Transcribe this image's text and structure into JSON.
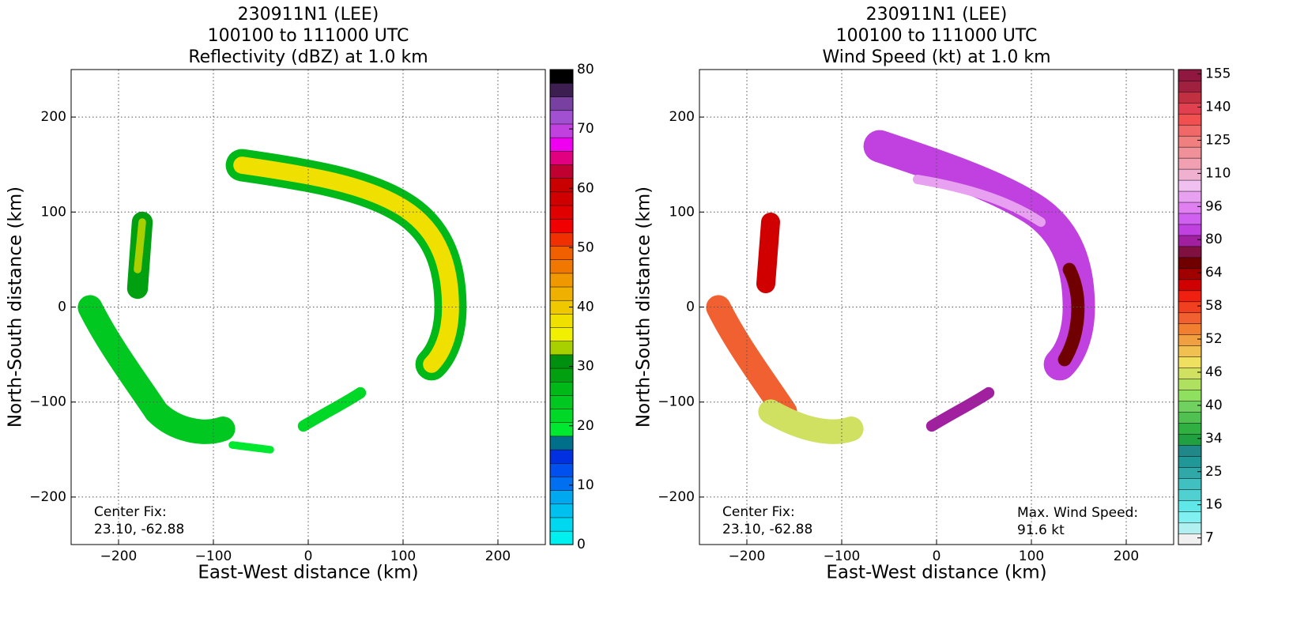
{
  "chart_data": [
    {
      "type": "radar-map",
      "title": [
        "230911N1 (LEE)",
        "100100 to 111000 UTC",
        "Reflectivity (dBZ) at 1.0 km"
      ],
      "xlabel": "East-West distance (km)",
      "ylabel": "North-South distance (km)",
      "xlim": [
        -250,
        250
      ],
      "ylim": [
        -250,
        250
      ],
      "xticks": [
        {
          "value": -200,
          "label": "−200"
        },
        {
          "value": -100,
          "label": "−100"
        },
        0,
        100,
        200
      ],
      "yticks": [
        {
          "value": -200,
          "label": "−200"
        },
        {
          "value": -100,
          "label": "−100"
        },
        0,
        100,
        200
      ],
      "grid": true,
      "colorbar": {
        "scale": "linear",
        "clim": [
          0,
          80
        ],
        "ticks": [
          0,
          10,
          20,
          30,
          40,
          50,
          60,
          70,
          80
        ],
        "colors": [
          "#00f0f0",
          "#00d8f0",
          "#00c0f0",
          "#00a8f0",
          "#0070f0",
          "#0050f0",
          "#0030e0",
          "#00708a",
          "#00e830",
          "#00d828",
          "#00c820",
          "#00b818",
          "#00a010",
          "#009010",
          "#a8d000",
          "#f0f000",
          "#f0e000",
          "#f0c800",
          "#f0b000",
          "#f09800",
          "#f07800",
          "#f06000",
          "#f03000",
          "#f00000",
          "#e00000",
          "#d00000",
          "#c80000",
          "#c00030",
          "#e00080",
          "#f000f0",
          "#c040e0",
          "#a050d0",
          "#7840a0",
          "#3c1e50",
          "#000000"
        ]
      },
      "annotations": [
        {
          "corner": "lower left",
          "lines": [
            "Center Fix:",
            "23.10, -62.88"
          ]
        }
      ]
    },
    {
      "type": "radar-map",
      "title": [
        "230911N1 (LEE)",
        "100100 to 111000 UTC",
        "Wind Speed (kt) at 1.0 km"
      ],
      "xlabel": "East-West distance (km)",
      "ylabel": "North-South distance (km)",
      "xlim": [
        -250,
        250
      ],
      "ylim": [
        -250,
        250
      ],
      "xticks": [
        {
          "value": -200,
          "label": "−200"
        },
        {
          "value": -100,
          "label": "−100"
        },
        0,
        100,
        200
      ],
      "yticks": [
        {
          "value": -200,
          "label": "−200"
        },
        {
          "value": -100,
          "label": "−100"
        },
        0,
        100,
        200
      ],
      "grid": true,
      "colorbar": {
        "scale": "index",
        "ticks": [
          7,
          16,
          25,
          34,
          40,
          46,
          52,
          58,
          64,
          80,
          96,
          110,
          125,
          140,
          155
        ],
        "colors": [
          "#f0f0f0",
          "#b0f0f0",
          "#80f0f0",
          "#60e8e8",
          "#50d0d0",
          "#40c0c0",
          "#30a8a8",
          "#209898",
          "#208888",
          "#20a040",
          "#30b040",
          "#50c050",
          "#70d060",
          "#90e060",
          "#b0e060",
          "#d0e060",
          "#f0e060",
          "#f0c050",
          "#f0a040",
          "#f08030",
          "#f06030",
          "#f04020",
          "#f02010",
          "#d00000",
          "#a00000",
          "#700000",
          "#801040",
          "#a020a0",
          "#c040e0",
          "#d060f0",
          "#e080f0",
          "#e8a0f0",
          "#f0c0f0",
          "#f0b0d0",
          "#f0a0b0",
          "#f09098",
          "#f08080",
          "#f06868",
          "#f05050",
          "#e04050",
          "#c03040",
          "#a02040",
          "#901840"
        ]
      },
      "annotations": [
        {
          "corner": "lower left",
          "lines": [
            "Center Fix:",
            "23.10, -62.88"
          ]
        },
        {
          "corner": "lower right",
          "lines": [
            "Max. Wind Speed:",
            "91.6 kt"
          ]
        }
      ]
    }
  ]
}
